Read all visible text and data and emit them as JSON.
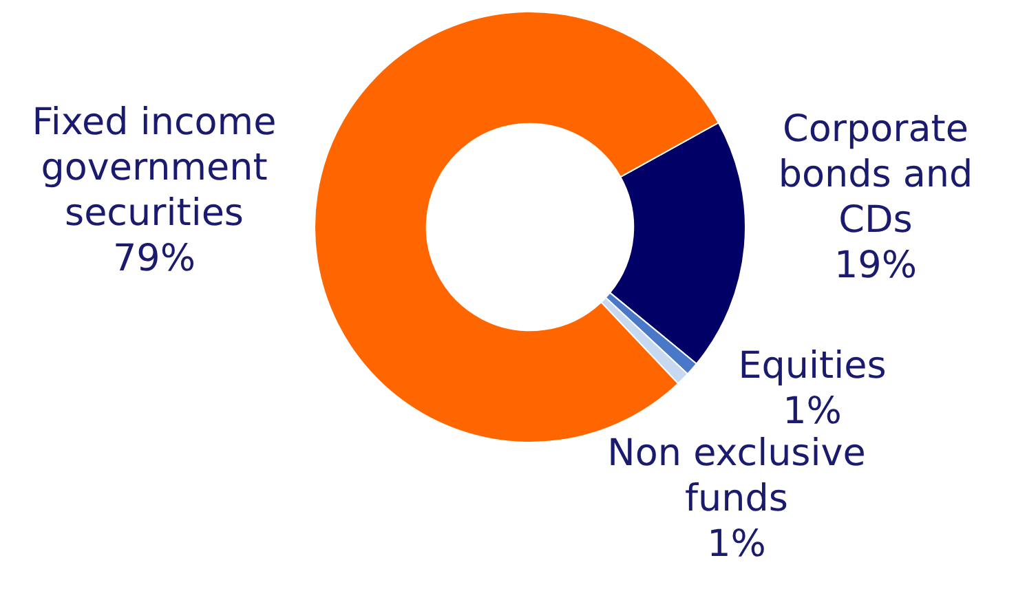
{
  "chart_data": {
    "type": "donut",
    "categories": [
      "Corporate bonds and CDs",
      "Equities",
      "Non exclusive funds",
      "Fixed income government securities"
    ],
    "values": [
      19,
      1,
      1,
      79
    ],
    "colors": [
      "#000066",
      "#4a78c8",
      "#c6d9f0",
      "#ff6600"
    ],
    "value_labels": [
      "19%",
      "1%",
      "1%",
      "79%"
    ],
    "legend": false
  }
}
